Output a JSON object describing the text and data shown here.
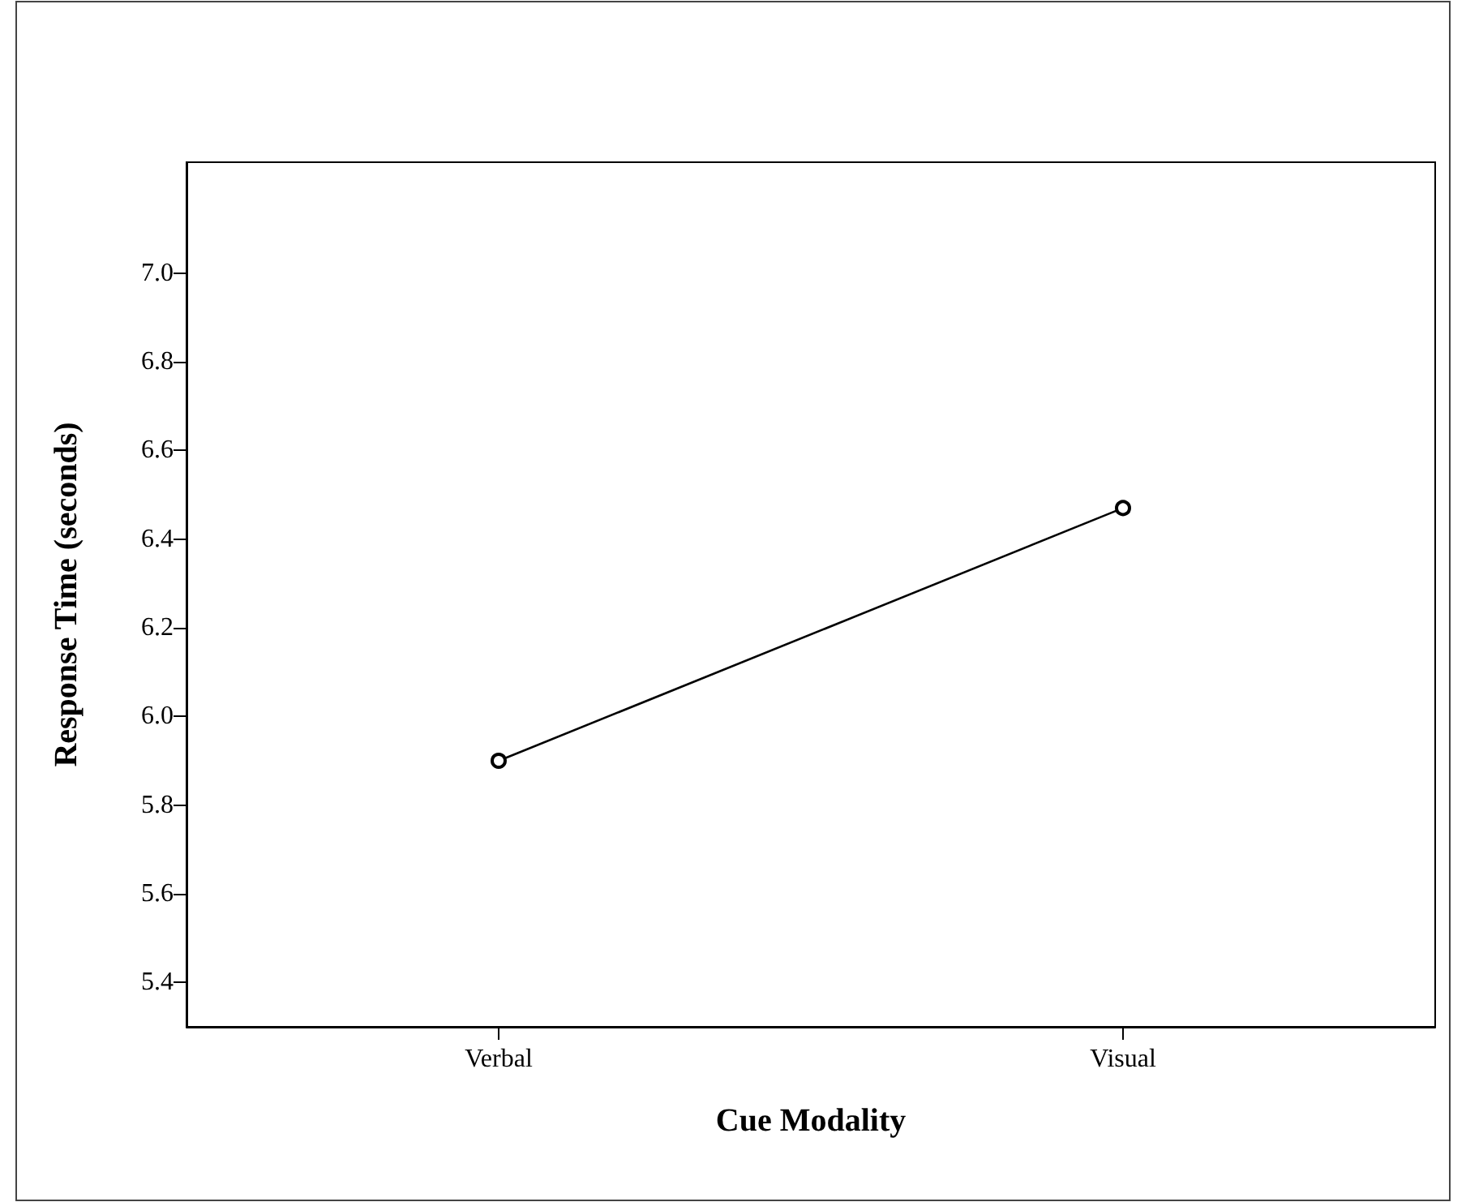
{
  "chart_data": {
    "type": "line",
    "xlabel": "Cue Modality",
    "ylabel": "Response Time (seconds)",
    "categories": [
      "Verbal",
      "Visual"
    ],
    "series": [
      {
        "color": "#000000",
        "values": [
          5.9,
          6.47
        ]
      }
    ],
    "ylim": [
      5.3,
      7.25
    ],
    "yticks": [
      5.4,
      5.6,
      5.8,
      {
        "value": 6,
        "label": "6.0"
      },
      6.2,
      6.4,
      6.6,
      6.8,
      {
        "value": 7,
        "label": "7.0"
      }
    ],
    "grid": false,
    "marker": "circle",
    "line_style": "solid"
  }
}
